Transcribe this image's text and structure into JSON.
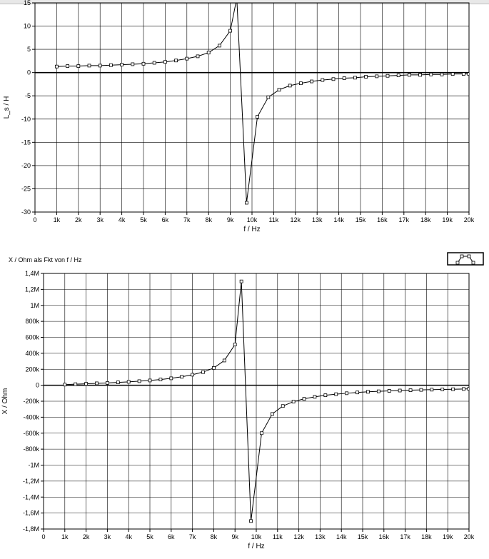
{
  "bottom_title": "X / Ohm  als Fkt von  f / Hz",
  "legend_button_icon": "series-preview-icon",
  "colors": {
    "grid": "#000000",
    "line": "#000000",
    "marker": "#000000",
    "background": "#ffffff"
  },
  "chart_data": [
    {
      "type": "line",
      "xlabel": "f / Hz",
      "ylabel": "L_s / H",
      "xlim": [
        0,
        20000
      ],
      "ylim": [
        -30,
        15
      ],
      "xticks": [
        0,
        1000,
        2000,
        3000,
        4000,
        5000,
        6000,
        7000,
        8000,
        9000,
        10000,
        11000,
        12000,
        13000,
        14000,
        15000,
        16000,
        17000,
        18000,
        19000,
        20000
      ],
      "xtick_labels": [
        "0",
        "1k",
        "2k",
        "3k",
        "4k",
        "5k",
        "6k",
        "7k",
        "8k",
        "9k",
        "10k",
        "11k",
        "12k",
        "13k",
        "14k",
        "15k",
        "16k",
        "17k",
        "18k",
        "19k",
        "20k"
      ],
      "yticks": [
        -30,
        -25,
        -20,
        -15,
        -10,
        -5,
        0,
        5,
        10,
        15
      ],
      "ytick_labels": [
        "-30",
        "-25",
        "-20",
        "-15",
        "-10",
        "-5",
        "0",
        "5",
        "10",
        "15"
      ],
      "zero_line": true,
      "grid": true,
      "x": [
        1000,
        1500,
        2000,
        2500,
        3000,
        3500,
        4000,
        4500,
        5000,
        5500,
        6000,
        6500,
        7000,
        7500,
        8000,
        8500,
        9000,
        9300,
        9750,
        10250,
        10750,
        11250,
        11750,
        12250,
        12750,
        13250,
        13750,
        14250,
        14750,
        15250,
        15750,
        16250,
        16750,
        17250,
        17750,
        18250,
        18750,
        19250,
        19750,
        20000
      ],
      "y": [
        1.3,
        1.4,
        1.4,
        1.5,
        1.5,
        1.6,
        1.7,
        1.8,
        1.9,
        2.1,
        2.3,
        2.6,
        3.0,
        3.5,
        4.3,
        5.8,
        9.0,
        16.0,
        -28.0,
        -9.5,
        -5.3,
        -3.7,
        -2.8,
        -2.3,
        -1.9,
        -1.6,
        -1.4,
        -1.2,
        -1.1,
        -0.9,
        -0.8,
        -0.7,
        -0.6,
        -0.5,
        -0.5,
        -0.4,
        -0.4,
        -0.3,
        -0.3,
        -0.3
      ]
    },
    {
      "type": "line",
      "title": "X / Ohm  als Fkt von  f / Hz",
      "xlabel": "f / Hz",
      "ylabel": "X / Ohm",
      "xlim": [
        0,
        20000
      ],
      "ylim": [
        -1800000,
        1400000
      ],
      "xticks": [
        0,
        1000,
        2000,
        3000,
        4000,
        5000,
        6000,
        7000,
        8000,
        9000,
        10000,
        11000,
        12000,
        13000,
        14000,
        15000,
        16000,
        17000,
        18000,
        19000,
        20000
      ],
      "xtick_labels": [
        "0",
        "1k",
        "2k",
        "3k",
        "4k",
        "5k",
        "6k",
        "7k",
        "8k",
        "9k",
        "10k",
        "11k",
        "12k",
        "13k",
        "14k",
        "15k",
        "16k",
        "17k",
        "18k",
        "19k",
        "20k"
      ],
      "yticks": [
        -1800000,
        -1600000,
        -1400000,
        -1200000,
        -1000000,
        -800000,
        -600000,
        -400000,
        -200000,
        0,
        200000,
        400000,
        600000,
        800000,
        1000000,
        1200000,
        1400000
      ],
      "ytick_labels": [
        "-1,8M",
        "-1,6M",
        "-1,4M",
        "-1,2M",
        "-1M",
        "-800k",
        "-600k",
        "-400k",
        "-200k",
        "0",
        "200k",
        "400k",
        "600k",
        "800k",
        "1M",
        "1,2M",
        "1,4M"
      ],
      "zero_line": true,
      "grid": true,
      "x": [
        1000,
        1500,
        2000,
        2500,
        3000,
        3500,
        4000,
        4500,
        5000,
        5500,
        6000,
        6500,
        7000,
        7500,
        8000,
        8500,
        9000,
        9300,
        9750,
        10250,
        10750,
        11250,
        11750,
        12250,
        12750,
        13250,
        13750,
        14250,
        14750,
        15250,
        15750,
        16250,
        16750,
        17250,
        17750,
        18250,
        18750,
        19250,
        19750,
        20000
      ],
      "y": [
        8000,
        13000,
        18000,
        24000,
        29000,
        36000,
        43000,
        51000,
        60000,
        72000,
        87000,
        106000,
        132000,
        165000,
        216000,
        310000,
        510000,
        1300000,
        -1700000,
        -600000,
        -360000,
        -260000,
        -205000,
        -170000,
        -145000,
        -125000,
        -112000,
        -100000,
        -90000,
        -82000,
        -76000,
        -70000,
        -66000,
        -62000,
        -58000,
        -55000,
        -52000,
        -50000,
        -47000,
        -45000
      ]
    }
  ]
}
